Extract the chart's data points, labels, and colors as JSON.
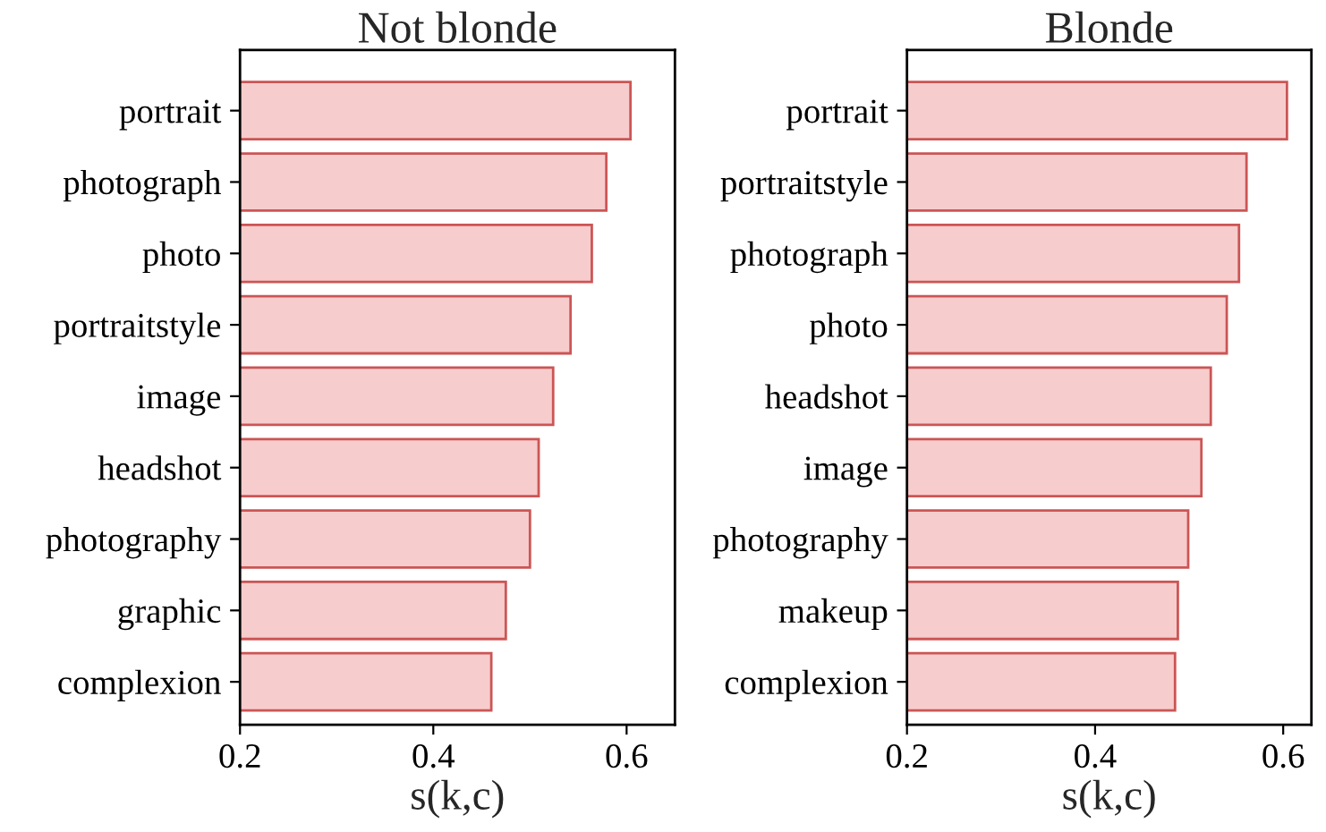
{
  "chart_data": [
    {
      "type": "bar",
      "orientation": "horizontal",
      "title": "Not blonde",
      "xlabel": "s(k,c)",
      "categories": [
        "portrait",
        "photograph",
        "photo",
        "portraitstyle",
        "image",
        "headshot",
        "photography",
        "graphic",
        "complexion"
      ],
      "values": [
        0.604,
        0.579,
        0.564,
        0.542,
        0.524,
        0.509,
        0.5,
        0.475,
        0.46
      ],
      "color": "#f7cccc",
      "xlim": [
        0.2,
        0.65
      ],
      "xticks": [
        0.2,
        0.4,
        0.6
      ],
      "grid": false,
      "legend": false
    },
    {
      "type": "bar",
      "orientation": "horizontal",
      "title": "Blonde",
      "xlabel": "s(k,c)",
      "categories": [
        "portrait",
        "portraitstyle",
        "photograph",
        "photo",
        "headshot",
        "image",
        "photography",
        "makeup",
        "complexion"
      ],
      "values": [
        0.604,
        0.561,
        0.553,
        0.54,
        0.523,
        0.513,
        0.499,
        0.488,
        0.485
      ],
      "color": "#f7cccc",
      "xlim": [
        0.2,
        0.63
      ],
      "xticks": [
        0.2,
        0.4,
        0.6
      ],
      "grid": false,
      "legend": false
    }
  ]
}
